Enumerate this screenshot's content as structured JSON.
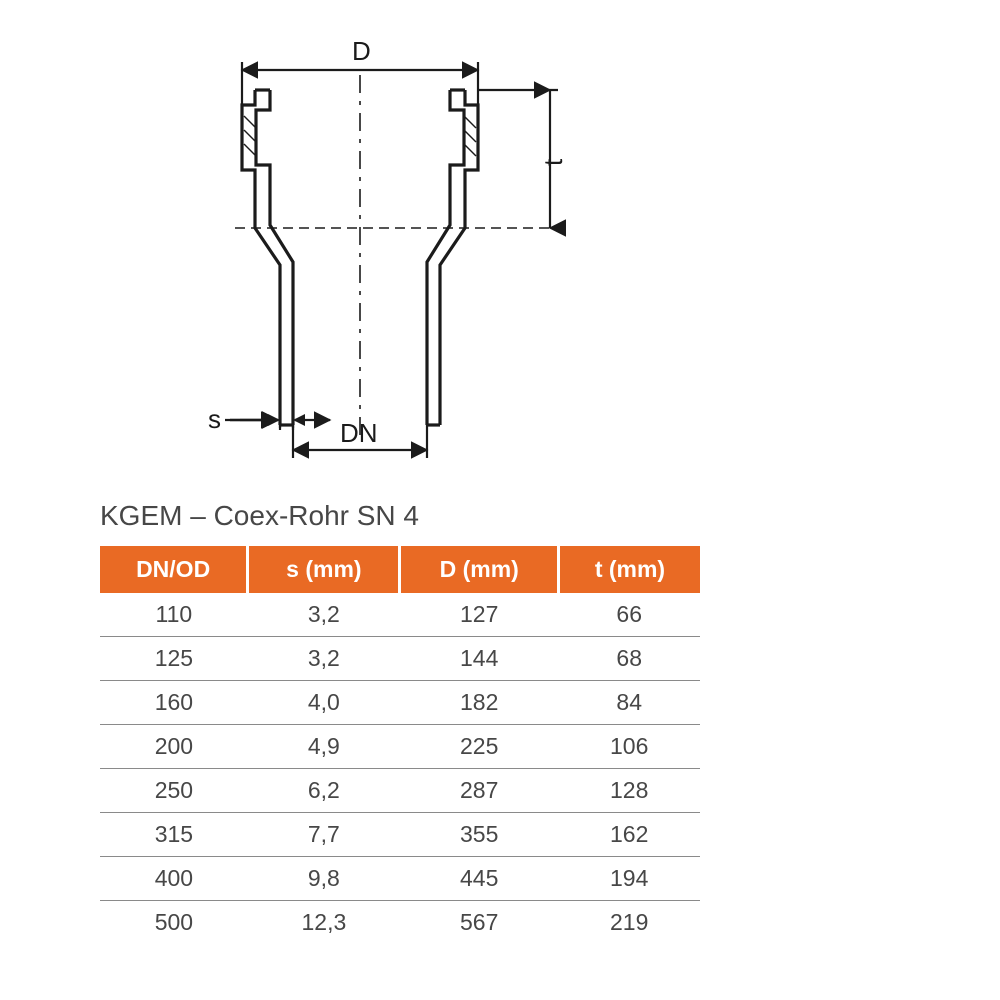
{
  "diagram": {
    "labels": {
      "D": "D",
      "t": "t",
      "s": "s",
      "DN": "DN"
    },
    "stroke_color": "#1b1b1b",
    "stroke_width_main": 3.2,
    "stroke_width_dim": 2.2,
    "dash_pattern": "14 8 4 8",
    "font_size": 26
  },
  "table": {
    "title": "KGEM – Coex-Rohr SN 4",
    "header_bg": "#e96a24",
    "header_fg": "#ffffff",
    "row_border": "#8a8a8a",
    "cell_fg": "#474747",
    "title_fontsize": 28,
    "header_fontsize": 23,
    "cell_fontsize": 23,
    "columns": [
      "DN/OD",
      "s (mm)",
      "D (mm)",
      "t (mm)"
    ],
    "rows": [
      [
        "110",
        "3,2",
        "127",
        "66"
      ],
      [
        "125",
        "3,2",
        "144",
        "68"
      ],
      [
        "160",
        "4,0",
        "182",
        "84"
      ],
      [
        "200",
        "4,9",
        "225",
        "106"
      ],
      [
        "250",
        "6,2",
        "287",
        "128"
      ],
      [
        "315",
        "7,7",
        "355",
        "162"
      ],
      [
        "400",
        "9,8",
        "445",
        "194"
      ],
      [
        "500",
        "12,3",
        "567",
        "219"
      ]
    ]
  }
}
